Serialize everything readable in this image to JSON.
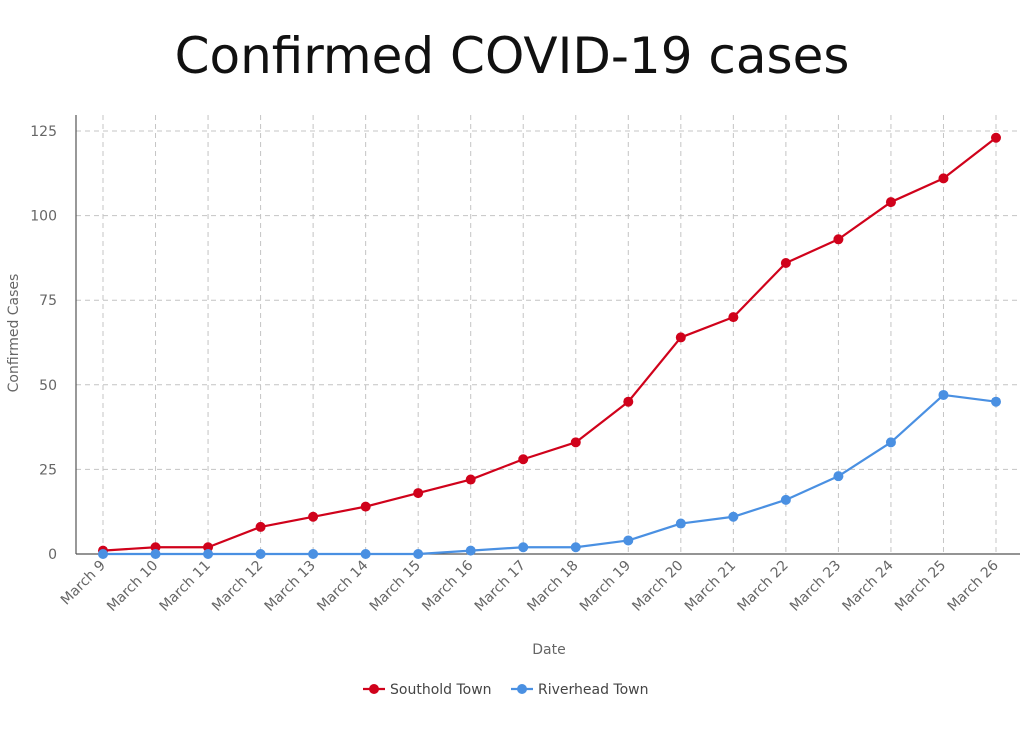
{
  "chart_data": {
    "type": "line",
    "title": "Confirmed COVID-19 cases",
    "xlabel": "Date",
    "ylabel": "Confirmed Cases",
    "ylim": [
      0,
      130
    ],
    "yticks": [
      "0",
      "25",
      "50",
      "75",
      "100",
      "125"
    ],
    "ytick_values": [
      0,
      25,
      50,
      75,
      100,
      125
    ],
    "grid": true,
    "legend_position": "bottom-center",
    "categories": [
      "March 9",
      "March 10",
      "March 11",
      "March 12",
      "March 13",
      "March 14",
      "March 15",
      "March 16",
      "March 17",
      "March 18",
      "March 19",
      "March 20",
      "March 21",
      "March 22",
      "March 23",
      "March 24",
      "March 25",
      "March 26"
    ],
    "series": [
      {
        "name": "Southold Town",
        "color": "#d0021b",
        "values": [
          1,
          2,
          2,
          8,
          11,
          14,
          18,
          22,
          28,
          33,
          45,
          64,
          70,
          86,
          93,
          104,
          111,
          123
        ]
      },
      {
        "name": "Riverhead Town",
        "color": "#4a90e2",
        "values": [
          0,
          0,
          0,
          0,
          0,
          0,
          0,
          1,
          2,
          2,
          4,
          9,
          11,
          16,
          23,
          33,
          47,
          45
        ]
      }
    ]
  }
}
